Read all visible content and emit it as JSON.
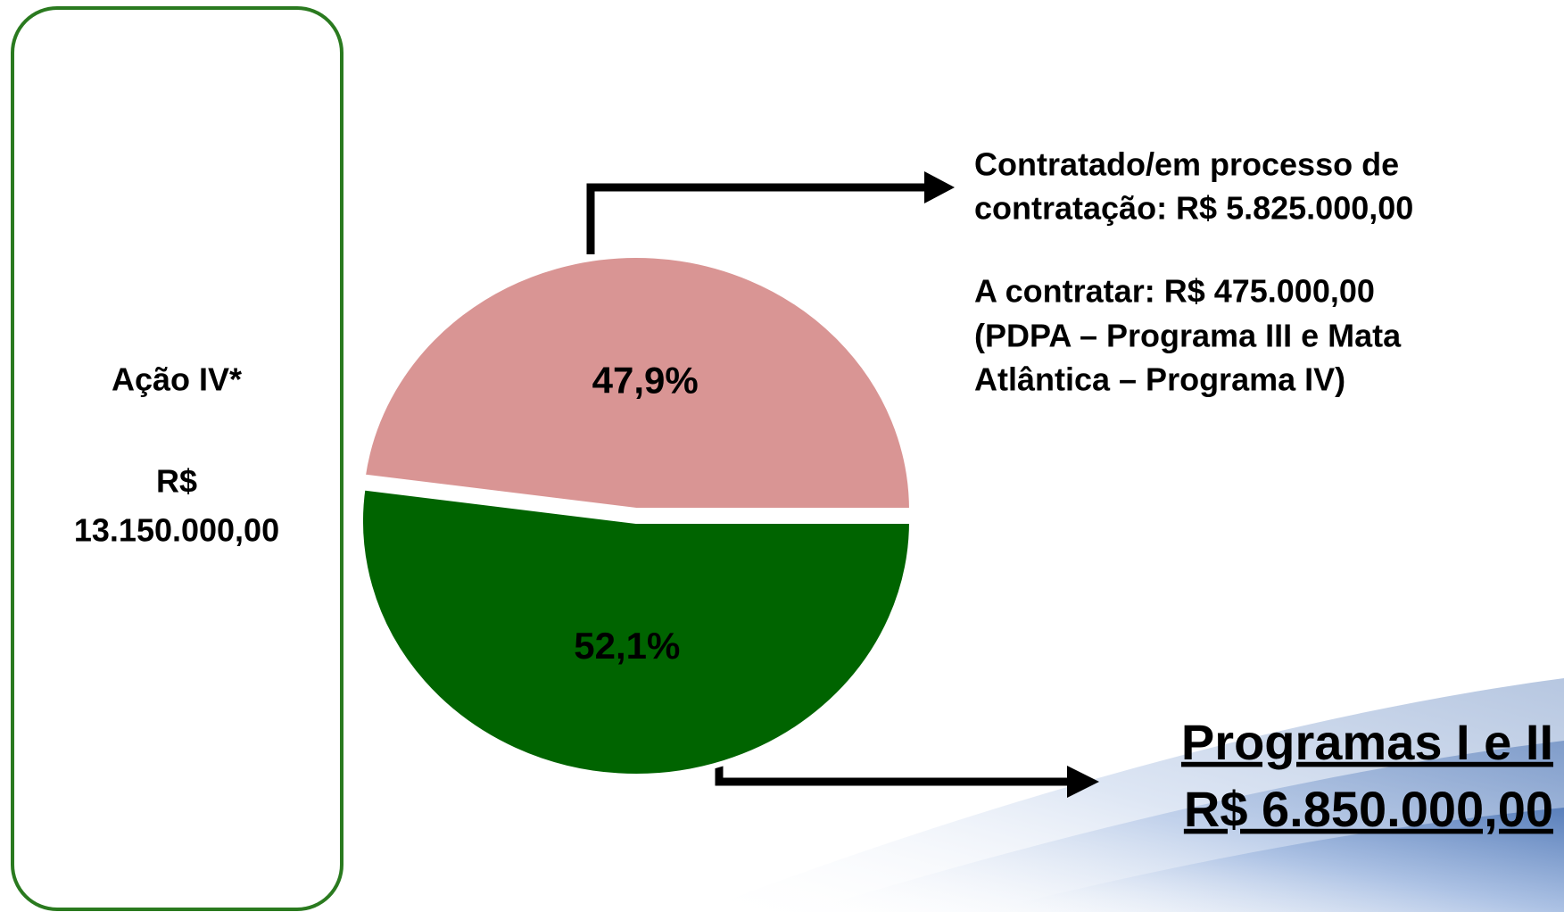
{
  "chart_data": {
    "type": "pie",
    "values": [
      47.9,
      52.1
    ],
    "value_labels": [
      "47,9%",
      "52,1%"
    ],
    "colors": [
      "#d99594",
      "#006400"
    ],
    "box": {
      "title": "Ação IV*",
      "currency": "R$",
      "amount": "13.150.000,00"
    },
    "annotations": [
      {
        "lines": [
          "Contratado/em processo de",
          "contratação: R$ 5.825.000,00",
          "A contratar: R$ 475.000,00",
          "(PDPA – Programa III e Mata",
          "Atlântica – Programa IV)"
        ]
      },
      {
        "lines": [
          "Programas I e II",
          "R$ 6.850.000,00"
        ]
      }
    ]
  }
}
